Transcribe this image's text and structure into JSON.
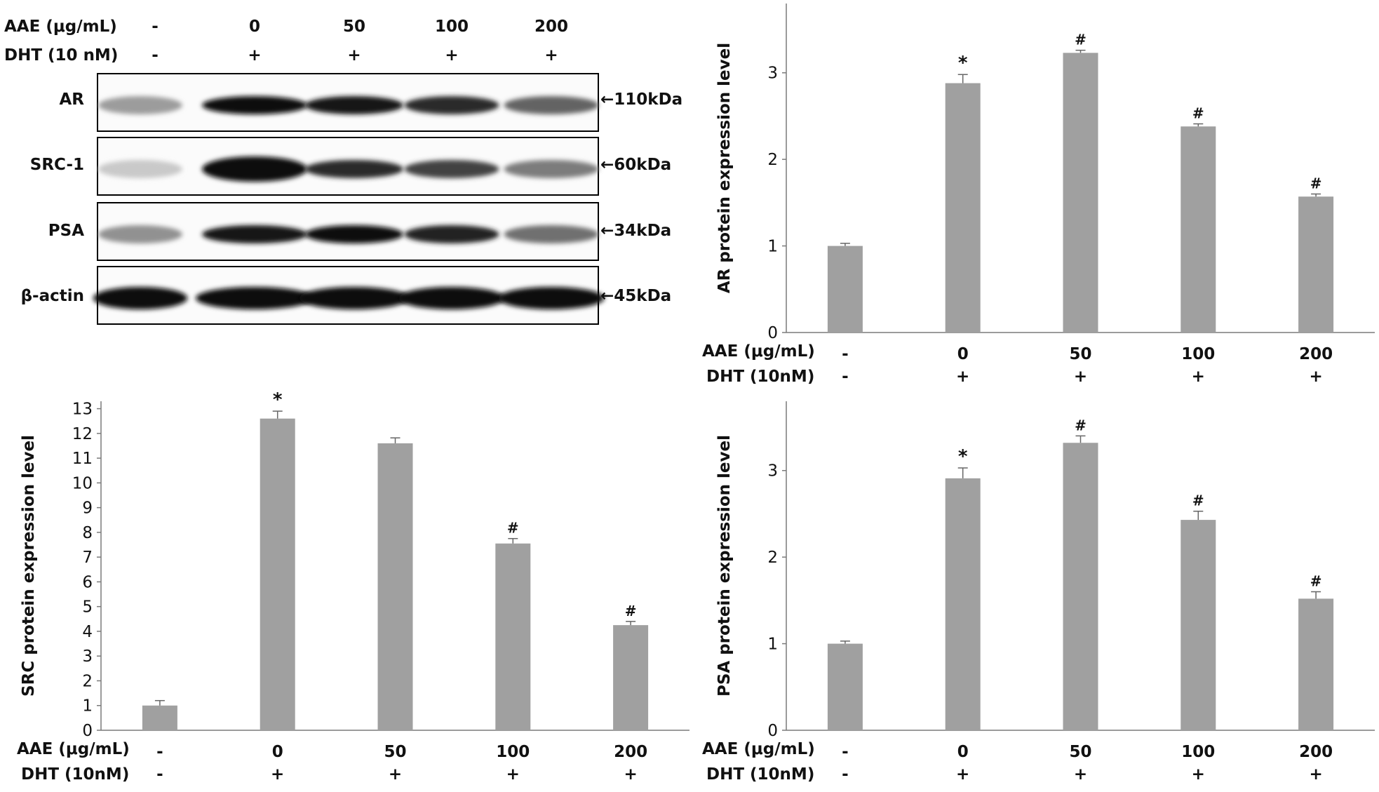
{
  "western_blot": {
    "conditions": {
      "aae_label": "AAE (μg/mL)",
      "aae_values": [
        "-",
        "0",
        "50",
        "100",
        "200"
      ],
      "dht_label": "DHT (10 nM)",
      "dht_values": [
        "-",
        "+",
        "+",
        "+",
        "+"
      ]
    },
    "bands": [
      {
        "name": "AR",
        "size": "←110kDa",
        "intensity": [
          0.35,
          1.0,
          0.95,
          0.85,
          0.6
        ]
      },
      {
        "name": "SRC-1",
        "size": "←60kDa",
        "intensity": [
          0.15,
          1.0,
          0.85,
          0.75,
          0.5
        ]
      },
      {
        "name": "PSA",
        "size": "←34kDa",
        "intensity": [
          0.4,
          0.95,
          1.0,
          0.9,
          0.55
        ]
      },
      {
        "name": "β-actin",
        "size": "←45kDa",
        "intensity": [
          1.0,
          1.0,
          1.0,
          1.0,
          1.0
        ]
      }
    ]
  },
  "chart_data": [
    {
      "id": "ar",
      "type": "bar",
      "ylabel": "AR protein expression level",
      "categories": [
        "-",
        "0",
        "50",
        "100",
        "200"
      ],
      "dht": [
        "-",
        "+",
        "+",
        "+",
        "+"
      ],
      "aae_label": "AAE (μg/mL)",
      "dht_label": "DHT (10nM)",
      "values": [
        1.0,
        2.88,
        3.23,
        2.38,
        1.57
      ],
      "errors": [
        0.03,
        0.1,
        0.03,
        0.03,
        0.03
      ],
      "annotations": [
        "",
        "*",
        "#",
        "#",
        "#"
      ],
      "ylim": [
        0,
        3.8
      ],
      "yticks": [
        "0",
        "1",
        "2",
        "3"
      ],
      "bar_color": "#a0a0a0"
    },
    {
      "id": "src",
      "type": "bar",
      "ylabel": "SRC protein expression level",
      "categories": [
        "-",
        "0",
        "50",
        "100",
        "200"
      ],
      "dht": [
        "-",
        "+",
        "+",
        "+",
        "+"
      ],
      "aae_label": "AAE (μg/mL)",
      "dht_label": "DHT (10nM)",
      "values": [
        1.0,
        12.6,
        11.6,
        7.55,
        4.25
      ],
      "errors": [
        0.2,
        0.3,
        0.22,
        0.2,
        0.15
      ],
      "annotations": [
        "",
        "*",
        "",
        "#",
        "#"
      ],
      "ylim": [
        0,
        13.3
      ],
      "yticks": [
        "0",
        "1",
        "2",
        "3",
        "4",
        "5",
        "6",
        "7",
        "8",
        "9",
        "10",
        "11",
        "12",
        "13"
      ],
      "bar_color": "#a0a0a0"
    },
    {
      "id": "psa",
      "type": "bar",
      "ylabel": "PSA protein expression level",
      "categories": [
        "-",
        "0",
        "50",
        "100",
        "200"
      ],
      "dht": [
        "-",
        "+",
        "+",
        "+",
        "+"
      ],
      "aae_label": "AAE (μg/mL)",
      "dht_label": "DHT (10nM)",
      "values": [
        1.0,
        2.91,
        3.32,
        2.43,
        1.52
      ],
      "errors": [
        0.03,
        0.12,
        0.08,
        0.1,
        0.08
      ],
      "annotations": [
        "",
        "*",
        "#",
        "#",
        "#"
      ],
      "ylim": [
        0,
        3.8
      ],
      "yticks": [
        "0",
        "1",
        "2",
        "3"
      ],
      "bar_color": "#a0a0a0"
    }
  ]
}
